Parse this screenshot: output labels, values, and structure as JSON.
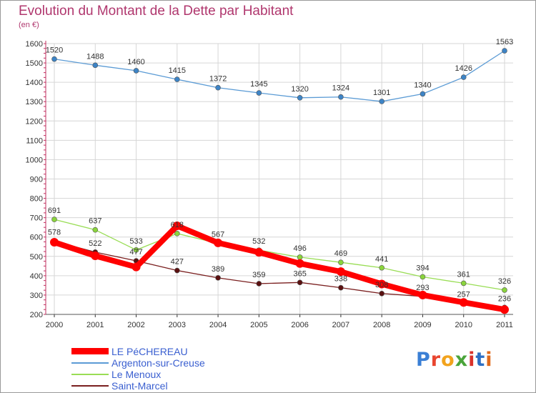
{
  "header": {
    "title": "Evolution du Montant de la Dette par Habitant",
    "subtitle": "(en €)"
  },
  "brand": {
    "name": "Proxiti",
    "letter_colors": [
      "#3a7fd5",
      "#e8452f",
      "#f2a31d",
      "#4aa43a",
      "#d9322b",
      "#2d6fc4",
      "#e06a1c"
    ]
  },
  "chart_data": {
    "type": "line",
    "title": "Evolution du Montant de la Dette par Habitant",
    "ylabel": "(en €)",
    "xlabel": "",
    "categories": [
      "2000",
      "2001",
      "2002",
      "2003",
      "2004",
      "2005",
      "2006",
      "2007",
      "2008",
      "2009",
      "2010",
      "2011"
    ],
    "yticks": [
      "200",
      "300",
      "400",
      "500",
      "600",
      "700",
      "800",
      "900",
      "1000",
      "1100",
      "1200",
      "1300",
      "1400",
      "1500",
      "1600"
    ],
    "ylim": [
      200,
      1600
    ],
    "grid": true,
    "legend_position": "bottom-left",
    "series": [
      {
        "name": "LE PéCHEREAU",
        "color": "#ff0000",
        "labels_visible": false,
        "values": [
          573,
          503,
          445,
          658,
          570,
          521,
          463,
          421,
          357,
          300,
          262,
          225
        ]
      },
      {
        "name": "Argenton-sur-Creuse",
        "color": "#5b9bd5",
        "labels_visible": true,
        "values": [
          1520,
          1488,
          1460,
          1415,
          1372,
          1345,
          1320,
          1324,
          1301,
          1340,
          1426,
          1563
        ]
      },
      {
        "name": "Le Menoux",
        "color": "#99dd55",
        "labels_visible": true,
        "values": [
          691,
          637,
          533,
          618,
          567,
          532,
          496,
          469,
          441,
          394,
          361,
          326
        ]
      },
      {
        "name": "Saint-Marcel",
        "color": "#7a1f1f",
        "labels_visible": true,
        "values": [
          578,
          522,
          477,
          427,
          389,
          359,
          365,
          338,
          308,
          293,
          257,
          236
        ]
      }
    ]
  }
}
